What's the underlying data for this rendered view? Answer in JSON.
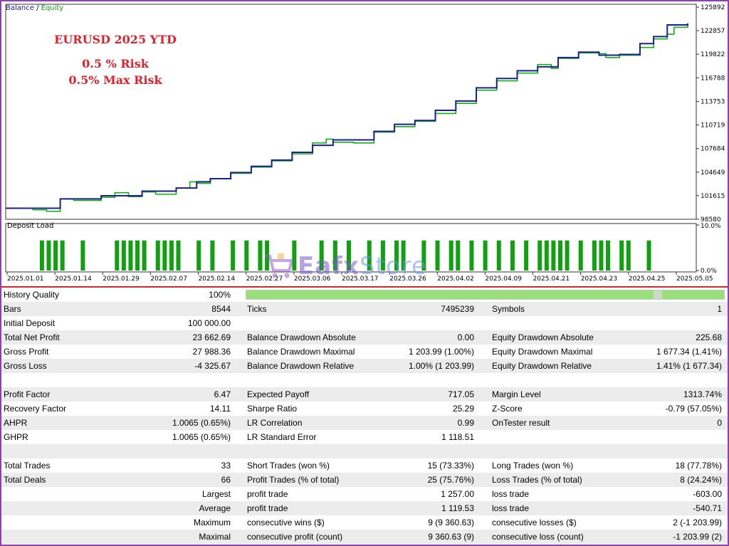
{
  "chart": {
    "legend_balance": "Balance",
    "legend_sep": " / ",
    "legend_equity": "Equity",
    "overlay_lines": [
      "EURUSD 2025 YTD",
      "0.5 % Risk",
      "0.5% Max Risk"
    ],
    "y_ticks": [
      "125892",
      "122857",
      "119822",
      "116788",
      "113753",
      "110719",
      "107684",
      "104649",
      "101615",
      "98580"
    ],
    "x_ticks": [
      "2025.01.01",
      "2025.01.14",
      "2025.01.29",
      "2025.02.07",
      "2025.02.14",
      "2025.02.27",
      "2025.03.06",
      "2025.03.17",
      "2025.03.26",
      "2025.04.02",
      "2025.04.09",
      "2025.04.21",
      "2025.04.23",
      "2025.04.25",
      "2025.05.05"
    ],
    "deposit_load_label": "Deposit Load",
    "deposit_ticks": [
      "10.0%",
      "0.0%"
    ],
    "watermark_main": "Eafx",
    "watermark_store": "Store",
    "colors": {
      "balance": "#1a2090",
      "equity": "#12b012",
      "deposit": "#10a010"
    }
  },
  "chart_data": {
    "type": "line",
    "title": "Balance / Equity",
    "ylim": [
      98580,
      125892
    ],
    "x_index_max": 100,
    "series": [
      {
        "name": "Balance",
        "x": [
          0,
          4,
          8,
          10,
          14,
          18,
          20,
          25,
          28,
          30,
          33,
          36,
          39,
          42,
          45,
          48,
          51,
          54,
          57,
          60,
          63,
          66,
          69,
          72,
          75,
          78,
          81,
          84,
          87,
          90,
          93,
          95,
          97,
          100
        ],
        "values": [
          100000,
          100000,
          101200,
          101200,
          101600,
          101600,
          102200,
          102600,
          103400,
          103800,
          104600,
          105400,
          106200,
          107200,
          108100,
          108800,
          108800,
          109900,
          110800,
          111300,
          112600,
          113800,
          115500,
          116700,
          117700,
          118200,
          119400,
          120100,
          119700,
          119800,
          121200,
          122100,
          123600,
          123800
        ]
      },
      {
        "name": "Equity",
        "x": [
          0,
          4,
          6,
          8,
          10,
          14,
          16,
          18,
          20,
          22,
          25,
          27,
          28,
          30,
          33,
          36,
          39,
          42,
          45,
          47,
          48,
          51,
          54,
          57,
          60,
          63,
          66,
          69,
          72,
          75,
          78,
          80,
          81,
          84,
          87,
          88,
          90,
          93,
          95,
          97,
          98,
          100
        ],
        "values": [
          100000,
          99800,
          99600,
          101200,
          101000,
          101400,
          102000,
          101500,
          102100,
          101800,
          102600,
          103400,
          103200,
          103800,
          104500,
          105300,
          106100,
          107000,
          108400,
          108900,
          108500,
          108400,
          109800,
          110500,
          111200,
          112200,
          113500,
          115200,
          116400,
          117400,
          118500,
          118000,
          119300,
          120000,
          119900,
          119400,
          119700,
          120700,
          121800,
          122400,
          123300,
          123700
        ]
      },
      {
        "name": "Deposit Load",
        "unit": "%",
        "ylim": [
          0,
          10
        ],
        "x": [
          5,
          6,
          7,
          8,
          11,
          16,
          17,
          18,
          19,
          20,
          22,
          23,
          24,
          25,
          28,
          30,
          33,
          35,
          37,
          38,
          42,
          46,
          48,
          50,
          53,
          55,
          57,
          58,
          61,
          63,
          65,
          66,
          68,
          70,
          72,
          74,
          76,
          78,
          79,
          80,
          81,
          82,
          84,
          86,
          87,
          88,
          90,
          91,
          94
        ],
        "values": [
          6.6,
          6.6,
          6.6,
          6.6,
          6.6,
          6.6,
          6.6,
          6.6,
          6.6,
          6.6,
          6.6,
          6.6,
          6.6,
          6.6,
          6.6,
          6.6,
          6.6,
          6.6,
          6.6,
          6.6,
          6.6,
          6.6,
          6.6,
          6.6,
          6.6,
          6.6,
          6.6,
          6.6,
          6.6,
          6.6,
          6.6,
          6.6,
          6.6,
          6.6,
          6.6,
          6.6,
          6.6,
          6.6,
          6.6,
          6.6,
          6.6,
          6.6,
          6.6,
          6.6,
          6.6,
          6.6,
          6.6,
          6.6,
          6.6
        ]
      }
    ]
  },
  "report": {
    "history_quality": {
      "label": "History Quality",
      "value": "100%"
    },
    "rows": [
      {
        "c1": [
          "Bars",
          "8544"
        ],
        "c2": [
          "Ticks",
          "7495239"
        ],
        "c3": [
          "Symbols",
          "1"
        ]
      },
      {
        "c1": [
          "Initial Deposit",
          "100 000.00"
        ],
        "c2": [
          "",
          ""
        ],
        "c3": [
          "",
          ""
        ]
      },
      {
        "c1": [
          "Total Net Profit",
          "23 662.69"
        ],
        "c2": [
          "Balance Drawdown Absolute",
          "0.00"
        ],
        "c3": [
          "Equity Drawdown Absolute",
          "225.68"
        ]
      },
      {
        "c1": [
          "Gross Profit",
          "27 988.36"
        ],
        "c2": [
          "Balance Drawdown Maximal",
          "1 203.99 (1.00%)"
        ],
        "c3": [
          "Equity Drawdown Maximal",
          "1 677.34 (1.41%)"
        ]
      },
      {
        "c1": [
          "Gross Loss",
          "-4 325.67"
        ],
        "c2": [
          "Balance Drawdown Relative",
          "1.00% (1 203.99)"
        ],
        "c3": [
          "Equity Drawdown Relative",
          "1.41% (1 677.34)"
        ]
      },
      {
        "c1": [
          "",
          ""
        ],
        "c2": [
          "",
          ""
        ],
        "c3": [
          "",
          ""
        ]
      },
      {
        "c1": [
          "Profit Factor",
          "6.47"
        ],
        "c2": [
          "Expected Payoff",
          "717.05"
        ],
        "c3": [
          "Margin Level",
          "1313.74%"
        ]
      },
      {
        "c1": [
          "Recovery Factor",
          "14.11"
        ],
        "c2": [
          "Sharpe Ratio",
          "25.29"
        ],
        "c3": [
          "Z-Score",
          "-0.79 (57.05%)"
        ]
      },
      {
        "c1": [
          "AHPR",
          "1.0065 (0.65%)"
        ],
        "c2": [
          "LR Correlation",
          "0.99"
        ],
        "c3": [
          "OnTester result",
          "0"
        ]
      },
      {
        "c1": [
          "GHPR",
          "1.0065 (0.65%)"
        ],
        "c2": [
          "LR Standard Error",
          "1 118.51"
        ],
        "c3": [
          "",
          ""
        ]
      },
      {
        "c1": [
          "",
          ""
        ],
        "c2": [
          "",
          ""
        ],
        "c3": [
          "",
          ""
        ]
      },
      {
        "c1": [
          "Total Trades",
          "33"
        ],
        "c2": [
          "Short Trades (won %)",
          "15 (73.33%)"
        ],
        "c3": [
          "Long Trades (won %)",
          "18 (77.78%)"
        ]
      },
      {
        "c1": [
          "Total Deals",
          "66"
        ],
        "c2": [
          "Profit Trades (% of total)",
          "25 (75.76%)"
        ],
        "c3": [
          "Loss Trades (% of total)",
          "8 (24.24%)"
        ]
      },
      {
        "c1": [
          "",
          "Largest"
        ],
        "c2": [
          "profit trade",
          "1 257.00"
        ],
        "c3": [
          "loss trade",
          "-603.00"
        ]
      },
      {
        "c1": [
          "",
          "Average"
        ],
        "c2": [
          "profit trade",
          "1 119.53"
        ],
        "c3": [
          "loss trade",
          "-540.71"
        ]
      },
      {
        "c1": [
          "",
          "Maximum"
        ],
        "c2": [
          "consecutive wins ($)",
          "9 (9 360.63)"
        ],
        "c3": [
          "consecutive losses ($)",
          "2 (-1 203.99)"
        ]
      },
      {
        "c1": [
          "",
          "Maximal"
        ],
        "c2": [
          "consecutive profit (count)",
          "9 360.63 (9)"
        ],
        "c3": [
          "consecutive loss (count)",
          "-1 203.99 (2)"
        ]
      }
    ]
  }
}
